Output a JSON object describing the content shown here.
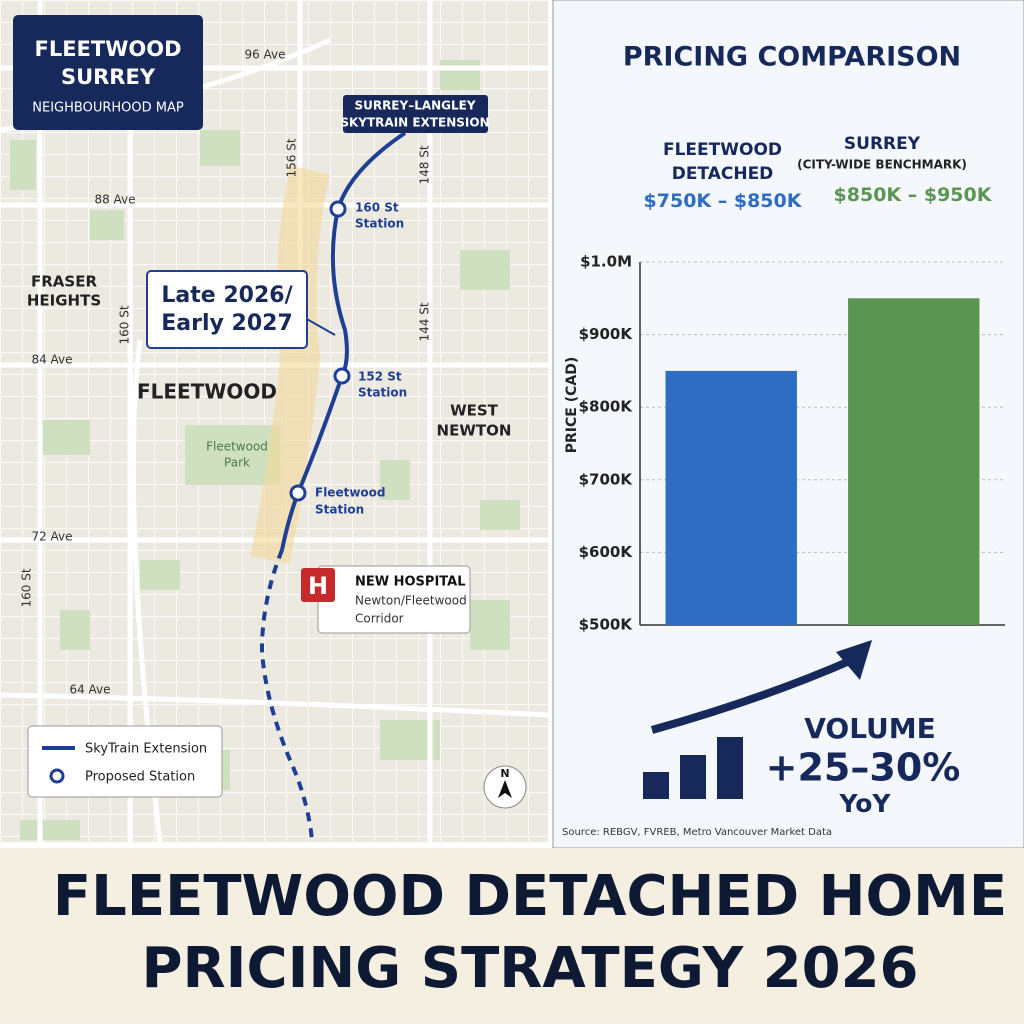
{
  "map": {
    "title": {
      "lines": [
        "FLEETWOOD",
        "SURREY"
      ],
      "subtitle": "NEIGHBOURHOOD MAP"
    },
    "streets": [
      "96 Ave",
      "88 Ave",
      "84 Ave",
      "72 Ave",
      "64 Ave",
      "156 St",
      "148 St",
      "160 St",
      "144 St",
      "160 St"
    ],
    "areas": {
      "fraser_heights": [
        "FRASER",
        "HEIGHTS"
      ],
      "fleetwood": "FLEETWOOD",
      "park": [
        "Fleetwood",
        "Park"
      ],
      "west_newton": [
        "WEST",
        "NEWTON"
      ]
    },
    "skytrain_callout": [
      "SURREY–LANGLEY",
      "SKYTRAIN EXTENSION"
    ],
    "timeline_callout": [
      "Late 2026/",
      "Early 2027"
    ],
    "stations": [
      [
        "160 St",
        "Station"
      ],
      [
        "152 St",
        "Station"
      ],
      [
        "Fleetwood",
        "Station"
      ]
    ],
    "hospital": {
      "icon": "H",
      "lines": [
        "NEW HOSPITAL",
        "Newton/Fleetwood",
        "Corridor"
      ]
    },
    "legend": [
      "SkyTrain Extension",
      "Proposed Station"
    ],
    "compass": "N"
  },
  "chart_data": {
    "type": "bar",
    "title": "PRICING COMPARISON",
    "ylabel": "PRICE (CAD)",
    "categories": [
      "FLEETWOOD DETACHED",
      "SURREY"
    ],
    "benchmark_note": "(CITY-WIDE BENCHMARK)",
    "range_labels": [
      "$750K – $850K",
      "$850K – $950K"
    ],
    "values": [
      850000,
      950000
    ],
    "colors": [
      "#2f6cc3",
      "#5a9552"
    ],
    "ylim": [
      500000,
      1000000
    ],
    "yticks": [
      {
        "value": 500000,
        "label": "$500K"
      },
      {
        "value": 600000,
        "label": "$600K"
      },
      {
        "value": 700000,
        "label": "$700K"
      },
      {
        "value": 800000,
        "label": "$800K"
      },
      {
        "value": 900000,
        "label": "$900K"
      },
      {
        "value": 1000000,
        "label": "$1.0M"
      }
    ],
    "grid": true,
    "source": "Source: REBGV, FVREB, Metro Vancouver Market Data"
  },
  "volume": {
    "label": "VOLUME",
    "change": "+25–30%",
    "period": "YoY"
  },
  "headline": [
    "FLEETWOOD DETACHED HOME",
    "PRICING STRATEGY 2026"
  ]
}
